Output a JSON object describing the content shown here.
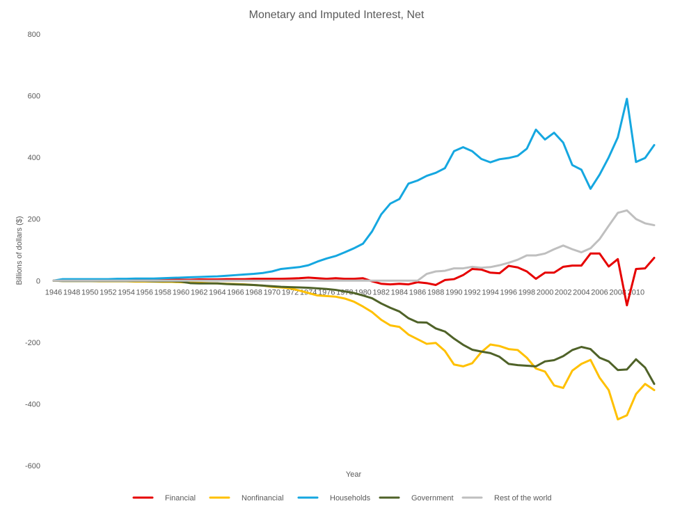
{
  "chart_data": {
    "type": "line",
    "title": "Monetary and Imputed Interest, Net",
    "xlabel": "Year",
    "ylabel": "Billions of dollars ($)",
    "ylim": [
      -600,
      800
    ],
    "yticks": [
      -600,
      -400,
      -200,
      0,
      200,
      400,
      600,
      800
    ],
    "grid": false,
    "legend": "bottom",
    "x": [
      1946,
      1947,
      1948,
      1949,
      1950,
      1951,
      1952,
      1953,
      1954,
      1955,
      1956,
      1957,
      1958,
      1959,
      1960,
      1961,
      1962,
      1963,
      1964,
      1965,
      1966,
      1967,
      1968,
      1969,
      1970,
      1971,
      1972,
      1973,
      1974,
      1975,
      1976,
      1977,
      1978,
      1979,
      1980,
      1981,
      1982,
      1983,
      1984,
      1985,
      1986,
      1987,
      1988,
      1989,
      1990,
      1991,
      1992,
      1993,
      1994,
      1995,
      1996,
      1997,
      1998,
      1999,
      2000,
      2001,
      2002,
      2003,
      2004,
      2005,
      2006,
      2007,
      2008,
      2009,
      2010,
      2011,
      2012
    ],
    "xtick_labels": [
      "1946",
      "1948",
      "1950",
      "1952",
      "1954",
      "1956",
      "1958",
      "1960",
      "1962",
      "1964",
      "1966",
      "1968",
      "1970",
      "1972",
      "1974",
      "1976",
      "1978",
      "1980",
      "1982",
      "1984",
      "1986",
      "1988",
      "1990",
      "1992",
      "1994",
      "1996",
      "1998",
      "2000",
      "2002",
      "2004",
      "2006",
      "2008",
      "2010"
    ],
    "series": [
      {
        "name": "Financial",
        "color": "#e60000",
        "values": [
          0,
          1,
          1,
          1,
          1,
          1,
          2,
          2,
          2,
          2,
          2,
          2,
          3,
          3,
          3,
          3,
          4,
          4,
          4,
          5,
          5,
          5,
          6,
          6,
          6,
          6,
          7,
          8,
          10,
          8,
          6,
          8,
          6,
          6,
          8,
          -2,
          -10,
          -12,
          -10,
          -12,
          -5,
          -8,
          -14,
          2,
          5,
          18,
          38,
          36,
          26,
          24,
          48,
          43,
          30,
          6,
          26,
          26,
          45,
          49,
          49,
          88,
          88,
          46,
          70,
          -80,
          38,
          40,
          74
        ]
      },
      {
        "name": "Nonfinancial",
        "color": "#ffc000",
        "values": [
          0,
          -1,
          -1,
          -1,
          -1,
          -2,
          -2,
          -2,
          -2,
          -3,
          -3,
          -3,
          -4,
          -4,
          -5,
          -6,
          -7,
          -8,
          -9,
          -10,
          -11,
          -12,
          -14,
          -16,
          -20,
          -22,
          -25,
          -32,
          -40,
          -48,
          -50,
          -52,
          -58,
          -68,
          -84,
          -102,
          -127,
          -145,
          -150,
          -175,
          -190,
          -205,
          -202,
          -228,
          -272,
          -278,
          -268,
          -232,
          -207,
          -212,
          -222,
          -225,
          -250,
          -285,
          -295,
          -340,
          -348,
          -292,
          -270,
          -257,
          -315,
          -355,
          -450,
          -437,
          -368,
          -335,
          -355
        ]
      },
      {
        "name": "Households",
        "color": "#15a7e0",
        "values": [
          0,
          5,
          5,
          5,
          5,
          5,
          5,
          6,
          6,
          7,
          7,
          7,
          8,
          9,
          10,
          11,
          12,
          13,
          14,
          16,
          18,
          20,
          22,
          25,
          30,
          38,
          41,
          44,
          50,
          62,
          72,
          80,
          92,
          105,
          120,
          160,
          215,
          250,
          265,
          315,
          325,
          340,
          350,
          365,
          420,
          433,
          420,
          395,
          384,
          394,
          398,
          405,
          428,
          490,
          458,
          480,
          448,
          375,
          360,
          298,
          344,
          400,
          465,
          590,
          385,
          398,
          440
        ]
      },
      {
        "name": "Government",
        "color": "#4f6228",
        "values": [
          0,
          -1,
          -1,
          -1,
          -1,
          -1,
          -1,
          -1,
          -1,
          -1,
          -1,
          -2,
          -2,
          -2,
          -3,
          -8,
          -9,
          -9,
          -9,
          -11,
          -12,
          -13,
          -14,
          -16,
          -18,
          -20,
          -21,
          -22,
          -23,
          -25,
          -27,
          -30,
          -35,
          -40,
          -48,
          -57,
          -74,
          -88,
          -100,
          -122,
          -135,
          -136,
          -155,
          -165,
          -188,
          -208,
          -224,
          -230,
          -235,
          -247,
          -270,
          -274,
          -276,
          -278,
          -262,
          -258,
          -245,
          -225,
          -215,
          -222,
          -250,
          -262,
          -290,
          -288,
          -255,
          -282,
          -335
        ]
      },
      {
        "name": "Rest of the world",
        "color": "#bfbfbf",
        "values": [
          0,
          0,
          0,
          0,
          0,
          0,
          0,
          0,
          0,
          0,
          0,
          0,
          0,
          0,
          0,
          0,
          0,
          0,
          0,
          0,
          0,
          0,
          0,
          0,
          0,
          0,
          0,
          0,
          0,
          0,
          0,
          0,
          0,
          0,
          0,
          0,
          0,
          0,
          0,
          0,
          0,
          22,
          30,
          32,
          40,
          40,
          45,
          42,
          44,
          50,
          58,
          68,
          82,
          82,
          88,
          102,
          114,
          102,
          92,
          105,
          135,
          178,
          220,
          228,
          200,
          186,
          180
        ]
      }
    ]
  }
}
